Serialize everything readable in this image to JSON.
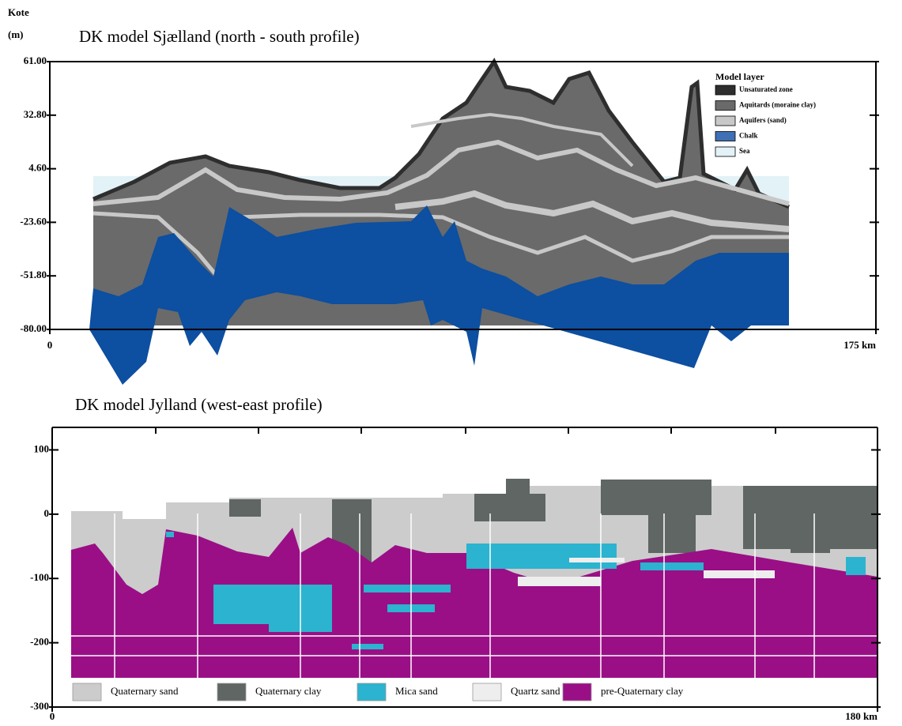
{
  "chart_data": [
    {
      "type": "cross-section",
      "title": "DK model Sjælland (north - south profile)",
      "ylabel": [
        "Kote",
        "(m)"
      ],
      "ylim": [
        -80,
        61
      ],
      "yticks": [
        {
          "value": 61,
          "label": "61.00"
        },
        {
          "value": 32.8,
          "label": "32.80"
        },
        {
          "value": 4.6,
          "label": "4.60"
        },
        {
          "value": -23.6,
          "label": "-23.60"
        },
        {
          "value": -51.8,
          "label": "-51.80"
        },
        {
          "value": -80,
          "label": "-80.00"
        }
      ],
      "xlim": [
        0,
        175
      ],
      "xticks": [
        0,
        {
          "value": 175,
          "label": "175 km"
        }
      ],
      "legend_title": "Model layer",
      "legend": [
        {
          "name": "Unsaturated zone",
          "color": "#2e2e2e"
        },
        {
          "name": "Aquitards (moraine clay)",
          "color": "#6a6a6a"
        },
        {
          "name": "Aquifers (sand)",
          "color": "#c8c8c8"
        },
        {
          "name": "Chalk",
          "color": "#3f6fb5"
        },
        {
          "name": "Sea",
          "color": "#e2f2f7"
        }
      ]
    },
    {
      "type": "cross-section",
      "title": "DK model Jylland (west-east profile)",
      "ylim": [
        -300,
        135
      ],
      "yticks": [
        100,
        0,
        -100,
        -200,
        -300
      ],
      "xlim": [
        0,
        180
      ],
      "xticks": [
        0,
        {
          "value": 180,
          "label": "180 km"
        }
      ],
      "legend": [
        {
          "name": "Quaternary sand",
          "color": "#cccccc"
        },
        {
          "name": "Quaternary clay",
          "color": "#5f6663"
        },
        {
          "name": "Mica sand",
          "color": "#2bb3cf"
        },
        {
          "name": "Quartz sand",
          "color": "#eeeeee"
        },
        {
          "name": "pre-Quaternary clay",
          "color": "#9a0f86"
        }
      ]
    }
  ]
}
